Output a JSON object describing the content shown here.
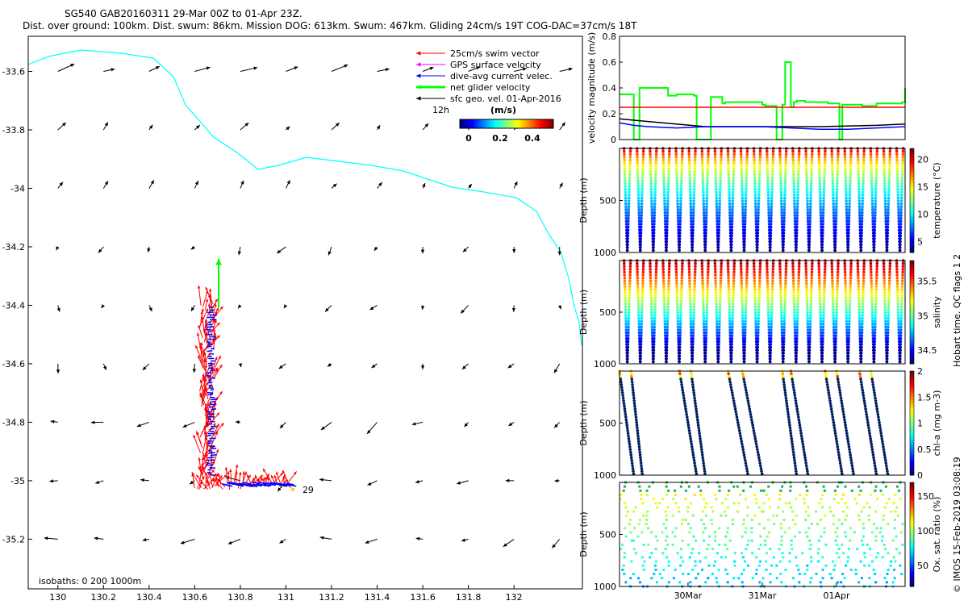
{
  "header": {
    "line1": "SG540 GAB20160311 29-Mar 00Z to 01-Apr 23Z.",
    "line2": "Dist. over ground: 100km. Dist. swum: 86km. Mission DOG: 613km. Swum: 467km. Gliding 24cm/s 19T COG-DAC=37cm/s 18T"
  },
  "map": {
    "x_ticks": [
      "130",
      "130.2",
      "130.4",
      "130.6",
      "130.8",
      "131",
      "131.2",
      "131.4",
      "131.6",
      "131.8",
      "132"
    ],
    "y_ticks": [
      "-33.6",
      "-33.8",
      "-34",
      "-34.2",
      "-34.4",
      "-34.6",
      "-34.8",
      "-35",
      "-35.2"
    ],
    "xlim": [
      129.87,
      132.3
    ],
    "ylim": [
      -35.37,
      -33.48
    ],
    "legend": [
      {
        "label": "25cm/s swim vector",
        "color": "#ff0000"
      },
      {
        "label": "GPS surface velocity",
        "color": "#ff00ff"
      },
      {
        "label": "dive-avg current velec.",
        "color": "#0000ff"
      },
      {
        "label": "net glider velocity",
        "color": "#00ff00"
      },
      {
        "label": "sfc geo. vel. 01-Apr-2016",
        "color": "#000000"
      }
    ],
    "colorbar_time_label": "12h",
    "colorbar_unit": "(m/s)",
    "colorbar_ticks": [
      "0",
      "0.2",
      "0.4"
    ],
    "track_end_label": "29",
    "isobaths_label": "isobaths: 0   200   1000m",
    "colors": {
      "coast": "#00ffff",
      "swim": "#ff0000",
      "dac": "#0000ff",
      "net": "#00ff00"
    }
  },
  "chart_data": [
    {
      "type": "line",
      "ylabel": "velocity magnitude (m/s)",
      "ylim": [
        0,
        0.8
      ],
      "y_ticks": [
        "0",
        "0.2",
        "0.4",
        "0.6",
        "0.8"
      ],
      "series": [
        {
          "color": "#00ff00",
          "x": [
            0,
            0.03,
            0.05,
            0.07,
            0.16,
            0.17,
            0.19,
            0.2,
            0.22,
            0.26,
            0.27,
            0.31,
            0.32,
            0.36,
            0.37,
            0.5,
            0.51,
            0.55,
            0.56,
            0.57,
            0.58,
            0.59,
            0.6,
            0.61,
            0.62,
            0.64,
            0.65,
            0.72,
            0.73,
            0.77,
            0.78,
            0.84,
            0.85,
            0.9,
            0.91,
            0.99,
            1.0
          ],
          "y": [
            0.35,
            0.35,
            0,
            0.4,
            0.4,
            0.34,
            0.34,
            0.35,
            0.35,
            0.34,
            0,
            0,
            0.33,
            0.28,
            0.29,
            0.27,
            0.26,
            0,
            0,
            0.27,
            0.6,
            0.6,
            0.25,
            0.29,
            0.3,
            0.3,
            0.29,
            0.29,
            0.28,
            0,
            0.27,
            0.27,
            0.26,
            0.28,
            0.28,
            0.29,
            0.4
          ]
        },
        {
          "color": "#ff0000",
          "x": [
            0,
            1
          ],
          "y": [
            0.25,
            0.25
          ]
        },
        {
          "color": "#000000",
          "x": [
            0,
            0.1,
            0.3,
            0.5,
            0.7,
            0.9,
            1.0
          ],
          "y": [
            0.16,
            0.14,
            0.1,
            0.1,
            0.1,
            0.11,
            0.12
          ]
        },
        {
          "color": "#0000ff",
          "x": [
            0,
            0.05,
            0.1,
            0.2,
            0.3,
            0.5,
            0.6,
            0.7,
            0.8,
            0.9,
            1.0
          ],
          "y": [
            0.13,
            0.11,
            0.1,
            0.09,
            0.1,
            0.1,
            0.09,
            0.08,
            0.08,
            0.09,
            0.1
          ]
        }
      ]
    },
    {
      "type": "scatter",
      "ylabel": "Depth (m)",
      "ylim": [
        1000,
        0
      ],
      "y_ticks": [
        "500",
        "1000"
      ],
      "colorbar_label": "temperature (°C)",
      "colorbar_ticks": [
        "5",
        "10",
        "15",
        "20"
      ],
      "clim": [
        3,
        22
      ],
      "profiles": 22
    },
    {
      "type": "scatter",
      "ylabel": "Depth (m)",
      "ylim": [
        1000,
        0
      ],
      "y_ticks": [
        "500",
        "1000"
      ],
      "colorbar_label": "salinity",
      "colorbar_ticks": [
        "34.5",
        "35",
        "35.5"
      ],
      "clim": [
        34.3,
        35.8
      ],
      "profiles": 22
    },
    {
      "type": "scatter",
      "ylabel": "Depth (m)",
      "ylim": [
        1000,
        0
      ],
      "y_ticks": [
        "500",
        "1000"
      ],
      "colorbar_label": "chl-a (mg m-3)",
      "colorbar_ticks": [
        "0",
        "0.5",
        "1",
        "1.5",
        "2"
      ],
      "clim": [
        0,
        2
      ]
    },
    {
      "type": "scatter",
      "ylabel": "Depth (m)",
      "ylim": [
        1000,
        0
      ],
      "y_ticks": [
        "500",
        "1000"
      ],
      "colorbar_label": "Ox. sat. ratio (%)",
      "colorbar_ticks": [
        "50",
        "100",
        "150"
      ],
      "clim": [
        20,
        170
      ],
      "x_ticks": [
        "30Mar",
        "31Mar",
        "01Apr"
      ],
      "x_tick_positions": [
        0.24,
        0.5,
        0.76
      ]
    }
  ],
  "qc_label": "Hobart time. QC flags 1  2",
  "credit": "© IMOS 15-Feb-2019 03:08:19"
}
